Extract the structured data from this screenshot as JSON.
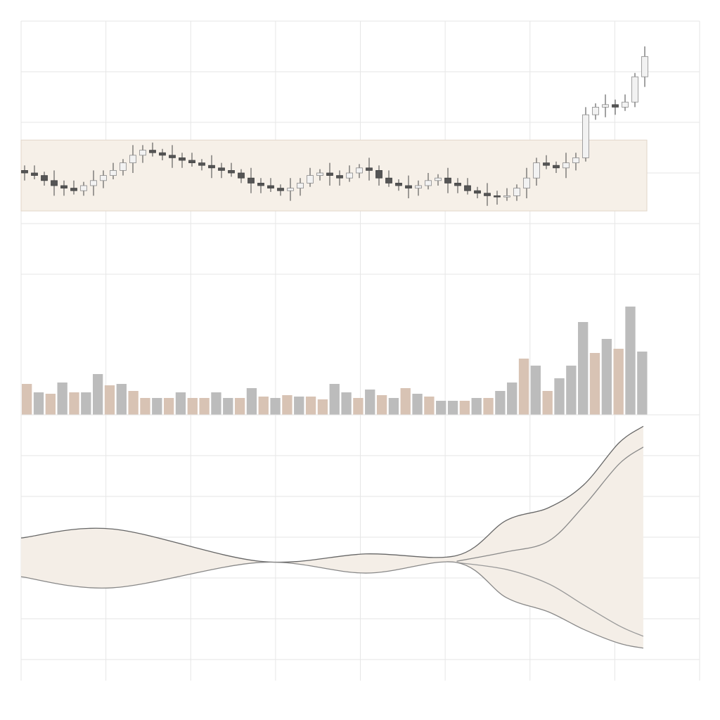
{
  "chart_data": [
    {
      "type": "candlestick",
      "open": [
        41,
        40,
        39,
        37,
        35,
        34,
        33,
        35,
        37,
        39,
        41,
        44,
        47,
        49,
        48,
        47,
        46,
        45,
        44,
        43,
        42,
        41,
        40,
        38,
        36,
        35,
        34,
        33,
        34,
        36,
        39,
        40,
        39,
        38,
        40,
        42,
        41,
        38,
        36,
        35,
        34,
        35,
        37,
        38,
        36,
        35,
        33,
        32,
        31,
        30.5,
        31,
        34,
        38,
        44,
        43,
        42,
        44,
        46,
        63,
        66,
        67,
        66,
        68,
        78
      ],
      "high": [
        43,
        43,
        40.5,
        41,
        37,
        37,
        36.5,
        41,
        41,
        44,
        45.5,
        51,
        51,
        52,
        49.5,
        51,
        48,
        48,
        45.5,
        47,
        44,
        44,
        41.5,
        42,
        38,
        38,
        35.5,
        38,
        38,
        42,
        41.5,
        44,
        41,
        43,
        43.5,
        46,
        43,
        41,
        37.5,
        39,
        37,
        40,
        39.5,
        42,
        38,
        38,
        34.5,
        36,
        33,
        34,
        35.5,
        42,
        46,
        47,
        44.5,
        48,
        48,
        66,
        67.5,
        71,
        69,
        71,
        79.5,
        90
      ],
      "low": [
        37,
        37.5,
        35,
        31,
        31,
        31.5,
        31,
        31,
        34,
        37.5,
        39,
        40,
        44,
        46.5,
        45,
        42,
        42,
        42.5,
        41,
        38,
        38,
        38.5,
        36,
        32,
        32,
        32.5,
        31,
        29,
        31,
        34.5,
        37,
        35,
        35,
        36.5,
        38,
        37,
        35,
        34.5,
        33,
        30,
        31,
        33.5,
        35,
        32,
        32,
        31.5,
        30,
        27,
        27.5,
        29,
        29,
        30,
        35,
        41.5,
        40,
        38,
        41,
        44.5,
        61,
        62,
        63,
        64.5,
        66,
        74
      ],
      "close": [
        40,
        39,
        37,
        35,
        34,
        33,
        35,
        37,
        39,
        41,
        44,
        47,
        49,
        48,
        47,
        46,
        45,
        44,
        43,
        42,
        41,
        40,
        38,
        36,
        35,
        34,
        33,
        34,
        36,
        39,
        40,
        39,
        38,
        40,
        42,
        41,
        38,
        36,
        35,
        34,
        35,
        37,
        38,
        36,
        35,
        33,
        32,
        31,
        30.5,
        31,
        34,
        38,
        44,
        43,
        42,
        44,
        46,
        63,
        66,
        67,
        66,
        68,
        78,
        86
      ],
      "up_color": "#f2f2f2",
      "down_color": "#555555",
      "wick_color": "#444444",
      "band": [
        25,
        53
      ],
      "band_color": "#f6f0e8",
      "ylim": [
        0,
        100
      ],
      "yticks": [
        0,
        20,
        40,
        60,
        80,
        100
      ],
      "xlim": [
        0,
        100
      ],
      "xticks": [
        0,
        12.5,
        25,
        37.5,
        50,
        62.5,
        75,
        87.5,
        100
      ],
      "grid": true
    },
    {
      "type": "bar",
      "values": [
        22,
        16,
        15,
        23,
        16,
        16,
        29,
        21,
        22,
        17,
        12,
        12,
        12,
        16,
        12,
        12,
        16,
        12,
        12,
        19,
        13,
        12,
        14,
        13,
        13,
        11,
        22,
        16,
        12,
        18,
        14,
        12,
        19,
        15,
        13,
        10,
        10,
        10,
        12,
        12,
        17,
        23,
        40,
        35,
        17,
        26,
        35,
        66,
        44,
        54,
        47,
        77,
        45
      ],
      "colors": [
        "#d8c3b4",
        "#bcbcbc",
        "#d8c3b4",
        "#bcbcbc",
        "#d8c3b4",
        "#bcbcbc",
        "#bcbcbc",
        "#d8c3b4",
        "#bcbcbc",
        "#d8c3b4",
        "#d8c3b4",
        "#bcbcbc",
        "#d8c3b4",
        "#bcbcbc",
        "#d8c3b4",
        "#d8c3b4",
        "#bcbcbc",
        "#bcbcbc",
        "#d8c3b4",
        "#bcbcbc",
        "#d8c3b4",
        "#bcbcbc",
        "#d8c3b4",
        "#bcbcbc",
        "#d8c3b4",
        "#d8c3b4",
        "#bcbcbc",
        "#bcbcbc",
        "#d8c3b4",
        "#bcbcbc",
        "#d8c3b4",
        "#bcbcbc",
        "#d8c3b4",
        "#bcbcbc",
        "#d8c3b4",
        "#bcbcbc",
        "#bcbcbc",
        "#d8c3b4",
        "#bcbcbc",
        "#d8c3b4",
        "#bcbcbc",
        "#bcbcbc",
        "#d8c3b4",
        "#bcbcbc",
        "#d8c3b4",
        "#bcbcbc",
        "#bcbcbc",
        "#bcbcbc",
        "#d8c3b4",
        "#bcbcbc",
        "#d8c3b4",
        "#bcbcbc",
        "#bcbcbc"
      ],
      "ylim": [
        0,
        100
      ],
      "yticks": [
        0,
        100
      ],
      "xlim": [
        0,
        100
      ],
      "xticks": [
        0,
        12.5,
        25,
        37.5,
        50,
        62.5,
        75,
        87.5,
        100
      ],
      "grid": true
    },
    {
      "type": "band",
      "x": [
        0,
        13.5,
        35.2,
        50.8,
        64.2,
        71.5,
        77.7,
        82.9,
        88.1,
        91.7
      ],
      "series": [
        {
          "color": "#666666",
          "values": [
            2.98,
            3.2,
            2.41,
            2.59,
            2.55,
            3.41,
            3.72,
            4.28,
            5.31,
            5.72
          ]
        },
        {
          "color": "#8a8a8a",
          "values": [
            null,
            null,
            null,
            null,
            2.41,
            2.64,
            2.9,
            3.76,
            4.79,
            5.21
          ]
        },
        {
          "color": "#9a9a9a",
          "values": [
            null,
            null,
            null,
            null,
            2.38,
            2.21,
            1.86,
            1.34,
            0.83,
            0.57
          ]
        },
        {
          "color": "#888888",
          "values": [
            2.03,
            1.76,
            2.38,
            2.12,
            2.38,
            1.52,
            1.17,
            0.74,
            0.4,
            0.28
          ]
        }
      ],
      "fill": "#f4eee7",
      "ylim": [
        0,
        6
      ],
      "yticks": [
        0,
        1,
        2,
        3,
        4,
        5,
        6
      ],
      "xlim": [
        0,
        100
      ],
      "xticks": [
        0,
        12.5,
        25,
        37.5,
        50,
        62.5,
        75,
        87.5,
        100
      ],
      "grid": true
    }
  ]
}
